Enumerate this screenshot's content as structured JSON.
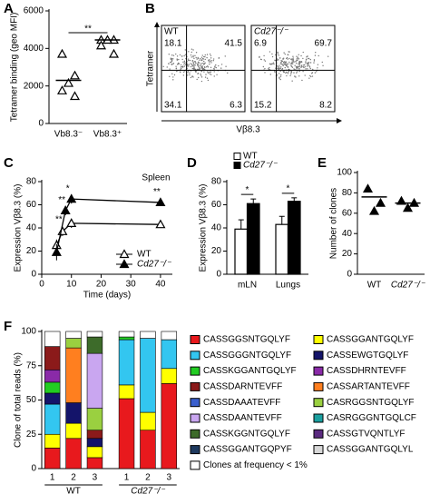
{
  "chart_data": [
    {
      "type": "dot",
      "panel": "A",
      "ylabel": "Tetramer binding (geo MFI)",
      "categories": [
        "Vb8.3⁻",
        "Vb8.3⁺"
      ],
      "values": [
        [
          3700,
          2550,
          2150,
          1750,
          1450
        ],
        [
          4450,
          4450,
          4450,
          4150,
          3700
        ]
      ],
      "means": [
        2300,
        4450
      ],
      "marker": "open",
      "ylim": [
        0,
        6000
      ],
      "yticks": [
        0,
        2000,
        4000,
        6000
      ],
      "significance": "**"
    },
    {
      "type": "flow",
      "panel": "B",
      "xlabel": "Vβ8.3",
      "ylabel": "Tetramer",
      "plots": [
        {
          "name": "WT",
          "quadrants": {
            "ul": 18.1,
            "ur": 41.5,
            "ll": 34.1,
            "lr": 6.3
          }
        },
        {
          "name": "Cd27⁻/⁻",
          "quadrants": {
            "ul": 6.9,
            "ur": 69.7,
            "ll": 15.2,
            "lr": 8.2
          }
        }
      ]
    },
    {
      "type": "line",
      "panel": "C",
      "title": "Spleen",
      "xlabel": "Time (days)",
      "ylabel": "Expression Vβ8.3 (%)",
      "xlim": [
        0,
        44
      ],
      "xticks": [
        0,
        10,
        20,
        30,
        40
      ],
      "ylim": [
        0,
        80
      ],
      "yticks": [
        0,
        20,
        40,
        60,
        80
      ],
      "series": [
        {
          "name": "WT",
          "marker": "open",
          "color": "#000000",
          "x": [
            5,
            7,
            10,
            40
          ],
          "values": [
            25,
            37,
            44,
            43
          ],
          "errors": [
            5,
            4,
            4,
            3
          ]
        },
        {
          "name": "Cd27⁻/⁻",
          "marker": "filled",
          "color": "#000000",
          "x": [
            5,
            8,
            10,
            40
          ],
          "values": [
            19,
            55,
            65,
            62
          ],
          "errors": [
            7,
            4,
            4,
            3
          ]
        }
      ],
      "annotations": [
        {
          "text": "**",
          "x": 7,
          "y": 47
        },
        {
          "text": "**",
          "x": 8,
          "y": 64
        },
        {
          "text": "*",
          "x": 10,
          "y": 74
        },
        {
          "text": "**",
          "x": 40,
          "y": 71
        }
      ]
    },
    {
      "type": "bar",
      "panel": "D",
      "ylabel": "Expression Vβ8.3 (%)",
      "categories": [
        "mLN",
        "Lungs"
      ],
      "ylim": [
        0,
        80
      ],
      "yticks": [
        0,
        20,
        40,
        60,
        80
      ],
      "series": [
        {
          "name": "WT",
          "color": "#ffffff",
          "values": [
            39,
            43
          ],
          "errors": [
            8,
            7
          ]
        },
        {
          "name": "Cd27⁻/⁻",
          "color": "#000000",
          "values": [
            61,
            63
          ],
          "errors": [
            4,
            3
          ]
        }
      ],
      "significance": [
        "*",
        "*"
      ]
    },
    {
      "type": "dot",
      "panel": "E",
      "ylabel": "Number of clones",
      "categories": [
        "WT",
        "Cd27⁻/⁻"
      ],
      "values": [
        [
          84,
          70,
          62
        ],
        [
          72,
          70,
          65
        ]
      ],
      "means": [
        76,
        70
      ],
      "marker": "filled",
      "ylim": [
        0,
        100
      ],
      "yticks": [
        0,
        20,
        40,
        60,
        80,
        100
      ]
    },
    {
      "type": "stacked_bar",
      "panel": "F",
      "ylabel": "Clone of total reads (%)",
      "categories": [
        "1",
        "2",
        "3",
        "1",
        "2",
        "3"
      ],
      "groups": [
        {
          "label": "WT",
          "size": 3
        },
        {
          "label": "Cd27⁻/⁻",
          "size": 3
        }
      ],
      "ylim": [
        0,
        100
      ],
      "yticks": [
        0,
        25,
        50,
        75,
        100
      ],
      "series": [
        {
          "name": "CASSGGSNTGQLYF",
          "color": "#e8191d",
          "values": [
            15,
            22,
            8,
            51,
            28,
            62
          ]
        },
        {
          "name": "CASSGGANTGQLYF",
          "color": "#ffff00",
          "values": [
            10,
            11,
            8,
            10,
            13,
            11
          ]
        },
        {
          "name": "CASSGGGNTGQLYF",
          "color": "#33c6f0",
          "values": [
            22,
            0,
            0,
            33,
            54,
            21
          ]
        },
        {
          "name": "CASSEWGTGQLYF",
          "color": "#14146a",
          "values": [
            8,
            15,
            6,
            0,
            0,
            0
          ]
        },
        {
          "name": "CASSKGGANTGQLYF",
          "color": "#22cc22",
          "values": [
            8,
            0,
            0,
            2,
            0,
            0
          ]
        },
        {
          "name": "CASSDHRNTEVFF",
          "color": "#8a2aa8",
          "values": [
            9,
            0,
            0,
            0,
            0,
            0
          ]
        },
        {
          "name": "CASSDARNTEVFF",
          "color": "#8b1a1a",
          "values": [
            17,
            0,
            6,
            0,
            0,
            0
          ]
        },
        {
          "name": "CASSARTANTEVFF",
          "color": "#ff7f1f",
          "values": [
            0,
            40,
            0,
            0,
            0,
            0
          ]
        },
        {
          "name": "CASSDAAATEVFF",
          "color": "#3a5fcd",
          "values": [
            0,
            0,
            0,
            0,
            0,
            0
          ]
        },
        {
          "name": "CASRGGSNTGQLYF",
          "color": "#9ad040",
          "values": [
            0,
            7,
            16,
            0,
            0,
            0
          ]
        },
        {
          "name": "CASSDAANTEVFF",
          "color": "#c9a6f0",
          "values": [
            0,
            0,
            40,
            0,
            0,
            0
          ]
        },
        {
          "name": "CASRGGGNTGQLCF",
          "color": "#1aa0a0",
          "values": [
            0,
            0,
            0,
            0,
            0,
            0
          ]
        },
        {
          "name": "CASSKGGNTGQLYF",
          "color": "#3d6b2a",
          "values": [
            0,
            0,
            12,
            0,
            0,
            0
          ]
        },
        {
          "name": "CASSGTVQNTLYF",
          "color": "#5b2a80",
          "values": [
            0,
            0,
            0,
            0,
            0,
            0
          ]
        },
        {
          "name": "CASSGGANTGQPYF",
          "color": "#1f3a5f",
          "values": [
            0,
            0,
            0,
            0,
            0,
            0
          ]
        },
        {
          "name": "CASSGGANTGQLYL",
          "color": "#d8d8d8",
          "values": [
            0,
            0,
            0,
            0,
            0,
            0
          ]
        },
        {
          "name": "Clones at frequency < 1%",
          "color": "#ffffff",
          "values": [
            11,
            5,
            4,
            4,
            5,
            6
          ]
        }
      ]
    }
  ]
}
